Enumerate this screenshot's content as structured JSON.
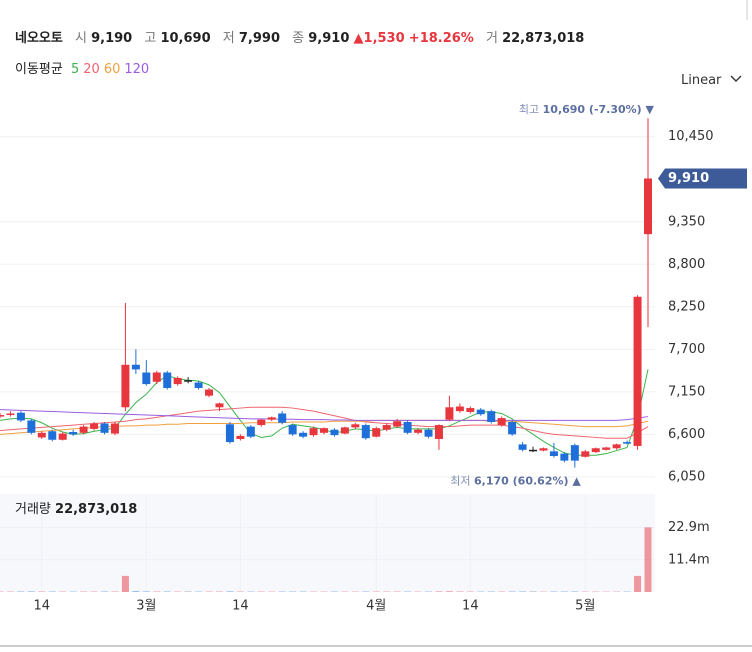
{
  "header": {
    "name": "네오오토",
    "fields": [
      {
        "label": "시",
        "value": "9,190"
      },
      {
        "label": "고",
        "value": "10,690"
      },
      {
        "label": "저",
        "value": "7,990"
      },
      {
        "label": "종",
        "value": "9,910"
      }
    ],
    "change": "▲1,530",
    "change_pct": "+18.26%",
    "volume_label": "거",
    "volume_value": "22,873,018",
    "ma_title": "이동평균",
    "scale_mode": "Linear"
  },
  "chart_data": {
    "type": "candlestick",
    "categories": [
      null,
      null,
      null,
      null,
      "14",
      null,
      null,
      null,
      null,
      null,
      null,
      null,
      null,
      null,
      "3월",
      null,
      null,
      null,
      null,
      null,
      null,
      null,
      null,
      "14",
      null,
      null,
      null,
      null,
      null,
      null,
      null,
      null,
      null,
      null,
      null,
      null,
      "4월",
      null,
      null,
      null,
      null,
      null,
      null,
      null,
      null,
      "14",
      null,
      null,
      null,
      null,
      null,
      null,
      null,
      null,
      null,
      null,
      "5월",
      null,
      null,
      null,
      null,
      null,
      null
    ],
    "open": [
      6830,
      6850,
      6880,
      6780,
      6560,
      6640,
      6530,
      6630,
      6620,
      6670,
      6740,
      6610,
      6950,
      7500,
      7400,
      7280,
      7400,
      7250,
      7300,
      7270,
      7100,
      6950,
      6730,
      6540,
      6700,
      6720,
      6790,
      6870,
      6720,
      6620,
      6590,
      6620,
      6660,
      6610,
      6690,
      6720,
      6570,
      6660,
      6700,
      6760,
      6620,
      6660,
      6540,
      6790,
      6900,
      6890,
      6920,
      6900,
      6720,
      6760,
      6470,
      6400,
      6390,
      6380,
      6350,
      6460,
      6310,
      6370,
      6400,
      6420,
      6500,
      6450,
      9190
    ],
    "high": [
      6880,
      6900,
      6900,
      6800,
      6640,
      6660,
      6630,
      6660,
      6720,
      6760,
      6760,
      6760,
      8300,
      7700,
      7560,
      7420,
      7420,
      7350,
      7340,
      7290,
      7200,
      7010,
      6760,
      6600,
      6720,
      6800,
      6830,
      6900,
      6740,
      6640,
      6700,
      6690,
      6680,
      6700,
      6750,
      6740,
      6700,
      6740,
      6800,
      6780,
      6680,
      6680,
      6730,
      7100,
      7000,
      6960,
      6940,
      6920,
      6830,
      6780,
      6500,
      6440,
      6430,
      6490,
      6370,
      6480,
      6400,
      6430,
      6440,
      6480,
      6520,
      8400,
      10690
    ],
    "low": [
      6810,
      6830,
      6760,
      6600,
      6540,
      6510,
      6520,
      6580,
      6600,
      6650,
      6600,
      6590,
      6900,
      7380,
      7230,
      7250,
      7180,
      7230,
      7260,
      7180,
      7080,
      6900,
      6480,
      6520,
      6550,
      6700,
      6770,
      6730,
      6580,
      6550,
      6570,
      6600,
      6570,
      6600,
      6670,
      6530,
      6560,
      6640,
      6690,
      6600,
      6600,
      6550,
      6400,
      6770,
      6880,
      6870,
      6840,
      6740,
      6700,
      6580,
      6380,
      6370,
      6380,
      6300,
      6240,
      6170,
      6300,
      6360,
      6390,
      6400,
      6470,
      6400,
      7990
    ],
    "close": [
      6850,
      6870,
      6780,
      6620,
      6620,
      6530,
      6610,
      6600,
      6700,
      6740,
      6620,
      6740,
      7500,
      7440,
      7250,
      7400,
      7200,
      7330,
      7300,
      7200,
      7180,
      7000,
      6500,
      6580,
      6570,
      6790,
      6820,
      6750,
      6600,
      6570,
      6680,
      6680,
      6590,
      6690,
      6730,
      6550,
      6680,
      6720,
      6770,
      6620,
      6660,
      6570,
      6720,
      6950,
      6960,
      6940,
      6860,
      6760,
      6810,
      6600,
      6400,
      6400,
      6420,
      6320,
      6260,
      6260,
      6380,
      6420,
      6430,
      6470,
      6480,
      8380,
      9910
    ],
    "colors": {
      "up": "#e8363f",
      "down": "#1e6fd9",
      "flat": "#222222"
    },
    "ma": [
      {
        "name": "5",
        "color": "#3cb44b",
        "values": [
          6780,
          6800,
          6810,
          6800,
          6750,
          6680,
          6630,
          6600,
          6610,
          6640,
          6660,
          6680,
          6860,
          7010,
          7120,
          7270,
          7360,
          7320,
          7300,
          7290,
          7240,
          7140,
          6960,
          6780,
          6610,
          6560,
          6580,
          6680,
          6730,
          6710,
          6690,
          6660,
          6620,
          6640,
          6670,
          6660,
          6640,
          6670,
          6690,
          6670,
          6670,
          6670,
          6670,
          6710,
          6770,
          6830,
          6890,
          6890,
          6870,
          6800,
          6690,
          6600,
          6510,
          6430,
          6360,
          6330,
          6330,
          6330,
          6350,
          6390,
          6430,
          6810,
          7440
        ]
      },
      {
        "name": "20",
        "color": "#f0646e",
        "values": [
          6650,
          6660,
          6670,
          6680,
          6690,
          6700,
          6710,
          6720,
          6730,
          6740,
          6750,
          6760,
          6770,
          6790,
          6800,
          6820,
          6840,
          6860,
          6880,
          6900,
          6910,
          6920,
          6930,
          6940,
          6950,
          6950,
          6950,
          6950,
          6940,
          6920,
          6900,
          6870,
          6840,
          6810,
          6780,
          6760,
          6750,
          6740,
          6730,
          6720,
          6710,
          6700,
          6700,
          6700,
          6710,
          6720,
          6720,
          6720,
          6720,
          6700,
          6680,
          6650,
          6620,
          6600,
          6590,
          6580,
          6570,
          6560,
          6550,
          6550,
          6550,
          6620,
          6700
        ]
      },
      {
        "name": "60",
        "color": "#f0a040",
        "values": [
          6600,
          6610,
          6620,
          6630,
          6640,
          6650,
          6660,
          6670,
          6680,
          6690,
          6700,
          6700,
          6710,
          6710,
          6720,
          6720,
          6730,
          6730,
          6740,
          6740,
          6740,
          6740,
          6740,
          6740,
          6750,
          6750,
          6750,
          6750,
          6760,
          6760,
          6760,
          6760,
          6770,
          6770,
          6770,
          6770,
          6780,
          6780,
          6780,
          6780,
          6780,
          6780,
          6780,
          6780,
          6780,
          6780,
          6780,
          6770,
          6770,
          6770,
          6760,
          6750,
          6740,
          6730,
          6720,
          6710,
          6700,
          6700,
          6700,
          6700,
          6710,
          6740,
          6770
        ]
      },
      {
        "name": "120",
        "color": "#9a5de0",
        "values": [
          6920,
          6915,
          6910,
          6905,
          6900,
          6895,
          6890,
          6885,
          6880,
          6875,
          6870,
          6865,
          6860,
          6855,
          6850,
          6845,
          6840,
          6835,
          6830,
          6825,
          6820,
          6815,
          6810,
          6805,
          6800,
          6800,
          6800,
          6795,
          6795,
          6790,
          6790,
          6790,
          6785,
          6785,
          6780,
          6780,
          6780,
          6780,
          6780,
          6780,
          6780,
          6780,
          6780,
          6780,
          6780,
          6780,
          6780,
          6780,
          6780,
          6780,
          6780,
          6780,
          6780,
          6780,
          6780,
          6780,
          6780,
          6780,
          6780,
          6780,
          6790,
          6810,
          6830
        ]
      }
    ],
    "ylim": [
      5880,
      10990
    ],
    "yticks": [
      {
        "value": 6050,
        "label": "6,050"
      },
      {
        "value": 6600,
        "label": "6,600"
      },
      {
        "value": 7150,
        "label": "7,150"
      },
      {
        "value": 7700,
        "label": "7,700"
      },
      {
        "value": 8250,
        "label": "8,250"
      },
      {
        "value": 8800,
        "label": "8,800"
      },
      {
        "value": 9350,
        "label": "9,350"
      },
      {
        "value": 10450,
        "label": "10,450"
      }
    ],
    "grid": true,
    "price_tag": {
      "value": 9910,
      "label": "9,910",
      "color": "#3d5a99"
    },
    "high_note": {
      "label": "최고",
      "text": "10,690 (-7.30%) ▼",
      "value": 10690
    },
    "low_note": {
      "label": "최저",
      "text": "6,170 (60.62%) ▲",
      "value": 6170
    },
    "volume": {
      "title": "거래량",
      "title_value": "22,873,018",
      "values": [
        150000,
        140000,
        180000,
        200000,
        160000,
        170000,
        150000,
        140000,
        160000,
        150000,
        170000,
        160000,
        5700000,
        300000,
        200000,
        160000,
        170000,
        150000,
        120000,
        140000,
        150000,
        160000,
        220000,
        150000,
        140000,
        150000,
        130000,
        140000,
        160000,
        150000,
        140000,
        130000,
        150000,
        140000,
        130000,
        160000,
        150000,
        140000,
        150000,
        160000,
        130000,
        140000,
        200000,
        250000,
        180000,
        150000,
        140000,
        160000,
        140000,
        160000,
        180000,
        120000,
        110000,
        150000,
        160000,
        170000,
        130000,
        120000,
        110000,
        130000,
        140000,
        5700000,
        22873018
      ],
      "ylim": [
        0,
        34700000
      ],
      "yticks": [
        {
          "value": 11400000,
          "label": "11.4m"
        },
        {
          "value": 22900000,
          "label": "22.9m"
        }
      ]
    }
  }
}
